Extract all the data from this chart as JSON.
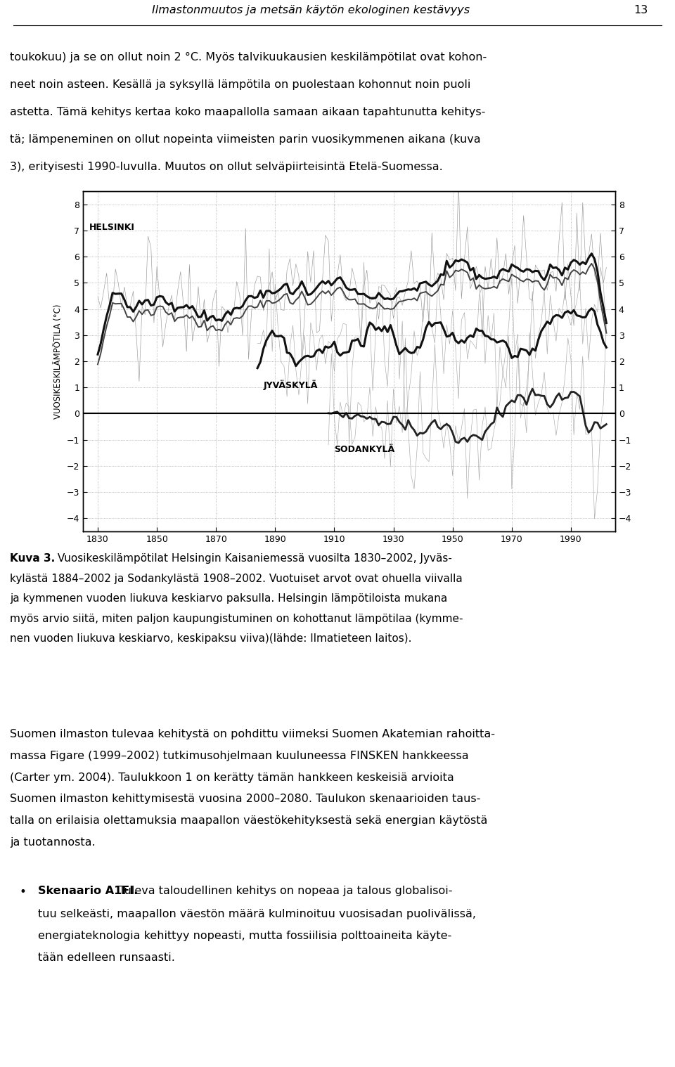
{
  "page_header": "Ilmastonmuutos ja metsän käytön ekologinen kestävyys",
  "page_number": "13",
  "para1_lines": [
    "toukokuu) ja se on ollut noin 2 °C. Myös talvikuukausien keskilämpötilat ovat kohon-",
    "neet noin asteen. Kesällä ja syksyllä lämpötila on puolestaan kohonnut noin puoli",
    "astetta. Tämä kehitys kertaa koko maapallolla samaan aikaan tapahtunutta kehitys-",
    "tä; lämpeneminen on ollut nopeinta viimeisten parin vuosikymmenen aikana (kuva",
    "3), erityisesti 1990-luvulla. Muutos on ollut selväpiirteisintä Etelä-Suomessa."
  ],
  "caption_bold": "Kuva 3.",
  "caption_lines": [
    " Vuosikeskilämpötilat Helsingin Kaisaniemessä vuosilta 1830–2002, Jyväs-",
    "kylästä 1884–2002 ja Sodankylästä 1908–2002. Vuotuiset arvot ovat ohuella viivalla",
    "ja kymmenen vuoden liukuva keskiarvo paksulla. Helsingin lämpötiloista mukana",
    "myös arvio siitä, miten paljon kaupungistuminen on kohottanut lämpötilaa (kymme-",
    "nen vuoden liukuva keskiarvo, keskipaksu viiva)(lähde: Ilmatieteen laitos)."
  ],
  "para2_lines": [
    "Suomen ilmaston tulevaa kehitystä on pohdittu viimeksi Suomen Akatemian rahoitta-",
    "massa Figare (1999–2002) tutkimusohjelmaan kuuluneessa FINSKEN hankkeessa",
    "(Carter ym. 2004). Taulukkoon 1 on kerätty tämän hankkeen keskeisiä arvioita",
    "Suomen ilmaston kehittymisestä vuosina 2000–2080. Taulukon skenaarioiden taus-",
    "talla on erilaisia olettamuksia maapallon väestökehityksestä sekä energian käytöstä",
    "ja tuotannosta."
  ],
  "bullet_bold": "Skenaario A1FI.",
  "bullet_lines": [
    " Tuleva taloudellinen kehitys on nopeaa ja talous globalisoi-",
    "tuu selkeästi, maapallon väestön määrä kulminoituu vuosisadan puolivälissä,",
    "energiateknologia kehittyy nopeasti, mutta fossiilisia polttoaineita käyte-",
    "tään edelleen runsaasti."
  ],
  "chart_xlim": [
    1825,
    2005
  ],
  "chart_ylim": [
    -4.5,
    8.5
  ],
  "chart_yticks": [
    -4,
    -3,
    -2,
    -1,
    0,
    1,
    2,
    3,
    4,
    5,
    6,
    7,
    8
  ],
  "chart_xticks": [
    1830,
    1850,
    1870,
    1890,
    1910,
    1930,
    1950,
    1970,
    1990
  ],
  "helsinki_label": "HELSINKI",
  "jyvaskyla_label": "JYVÄSKYLÄ",
  "sodankyla_label": "SODANKYLÄ",
  "ylabel": "VUOSIKESKILÄMPÖTILA (°C)",
  "bg_color": "#ffffff",
  "text_color": "#000000"
}
